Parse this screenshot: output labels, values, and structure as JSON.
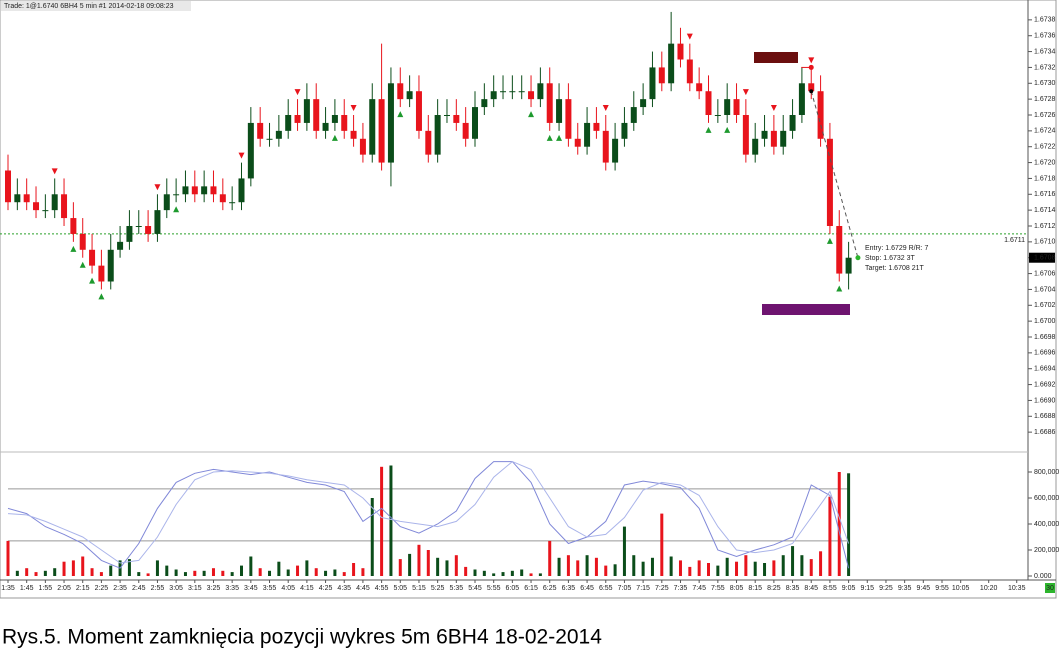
{
  "chart_data": {
    "type": "candlestick",
    "header": "Trade: 1@1.6740  6BH4  5 min  #1 2014-02-18 09:08:23",
    "caption": "Rys.5. Moment zamknięcia pozycji wykres 5m 6BH4 18-02-2014",
    "up_color": "#0b4d1a",
    "down_color": "#e8141c",
    "ylim": [
      1.6684,
      1.674
    ],
    "yticks": [
      1.6686,
      1.6688,
      {
        "value": 1.669,
        "label": "1.6690"
      },
      1.6692,
      1.6694,
      1.6696,
      1.6698,
      {
        "value": 1.67,
        "label": "1.6700"
      },
      1.6702,
      1.6704,
      1.6706,
      1.6708,
      {
        "value": 1.671,
        "label": "1.6710"
      },
      1.6712,
      1.6714,
      1.6716,
      1.6718,
      {
        "value": 1.672,
        "label": "1.6720"
      },
      1.6722,
      1.6724,
      1.6726,
      1.6728,
      {
        "value": 1.673,
        "label": "1.6730"
      },
      1.6732,
      1.6734,
      1.6736,
      1.6738
    ],
    "xlim": [
      -0.5,
      110
    ],
    "xticks": [
      {
        "value": 0,
        "label": "1:35"
      },
      {
        "value": 2,
        "label": "1:45"
      },
      {
        "value": 4,
        "label": "1:55"
      },
      {
        "value": 6,
        "label": "2:05"
      },
      {
        "value": 8,
        "label": "2:15"
      },
      {
        "value": 10,
        "label": "2:25"
      },
      {
        "value": 12,
        "label": "2:35"
      },
      {
        "value": 14,
        "label": "2:45"
      },
      {
        "value": 16,
        "label": "2:55"
      },
      {
        "value": 18,
        "label": "3:05"
      },
      {
        "value": 20,
        "label": "3:15"
      },
      {
        "value": 22,
        "label": "3:25"
      },
      {
        "value": 24,
        "label": "3:35"
      },
      {
        "value": 26,
        "label": "3:45"
      },
      {
        "value": 28,
        "label": "3:55"
      },
      {
        "value": 30,
        "label": "4:05"
      },
      {
        "value": 32,
        "label": "4:15"
      },
      {
        "value": 34,
        "label": "4:25"
      },
      {
        "value": 36,
        "label": "4:35"
      },
      {
        "value": 38,
        "label": "4:45"
      },
      {
        "value": 40,
        "label": "4:55"
      },
      {
        "value": 42,
        "label": "5:05"
      },
      {
        "value": 44,
        "label": "5:15"
      },
      {
        "value": 46,
        "label": "5:25"
      },
      {
        "value": 48,
        "label": "5:35"
      },
      {
        "value": 50,
        "label": "5:45"
      },
      {
        "value": 52,
        "label": "5:55"
      },
      {
        "value": 54,
        "label": "6:05"
      },
      {
        "value": 56,
        "label": "6:15"
      },
      {
        "value": 58,
        "label": "6:25"
      },
      {
        "value": 60,
        "label": "6:35"
      },
      {
        "value": 62,
        "label": "6:45"
      },
      {
        "value": 64,
        "label": "6:55"
      },
      {
        "value": 66,
        "label": "7:05"
      },
      {
        "value": 68,
        "label": "7:15"
      },
      {
        "value": 70,
        "label": "7:25"
      },
      {
        "value": 72,
        "label": "7:35"
      },
      {
        "value": 74,
        "label": "7:45"
      },
      {
        "value": 76,
        "label": "7:55"
      },
      {
        "value": 78,
        "label": "8:05"
      },
      {
        "value": 80,
        "label": "8:15"
      },
      {
        "value": 82,
        "label": "8:25"
      },
      {
        "value": 84,
        "label": "8:35"
      },
      {
        "value": 86,
        "label": "8:45"
      },
      {
        "value": 88,
        "label": "8:55"
      },
      {
        "value": 90,
        "label": "9:05"
      },
      {
        "value": 92,
        "label": "9:15"
      },
      {
        "value": 94,
        "label": "9:25"
      },
      {
        "value": 96,
        "label": "9:35"
      },
      {
        "value": 98,
        "label": "9:45"
      },
      {
        "value": 100,
        "label": "9:55"
      },
      {
        "value": 102,
        "label": "10:05"
      },
      {
        "value": 105,
        "label": "10:20"
      },
      {
        "value": 108,
        "label": "10:35"
      }
    ],
    "ohlc": [
      [
        1.6719,
        1.6721,
        1.6714,
        1.6715
      ],
      [
        1.6715,
        1.6718,
        1.6714,
        1.6716
      ],
      [
        1.6716,
        1.6718,
        1.6714,
        1.6715
      ],
      [
        1.6715,
        1.6717,
        1.6713,
        1.6714
      ],
      [
        1.6714,
        1.6716,
        1.6713,
        1.6714
      ],
      [
        1.6714,
        1.6718,
        1.6713,
        1.6716
      ],
      [
        1.6716,
        1.6718,
        1.6712,
        1.6713
      ],
      [
        1.6713,
        1.6715,
        1.671,
        1.6711
      ],
      [
        1.6711,
        1.6713,
        1.6708,
        1.6709
      ],
      [
        1.6709,
        1.6711,
        1.6706,
        1.6707
      ],
      [
        1.6707,
        1.6709,
        1.6704,
        1.6705
      ],
      [
        1.6705,
        1.6711,
        1.6704,
        1.6709
      ],
      [
        1.6709,
        1.6712,
        1.6708,
        1.671
      ],
      [
        1.671,
        1.6714,
        1.6709,
        1.6712
      ],
      [
        1.6712,
        1.6714,
        1.6711,
        1.6712
      ],
      [
        1.6712,
        1.6714,
        1.671,
        1.6711
      ],
      [
        1.6711,
        1.6716,
        1.671,
        1.6714
      ],
      [
        1.6714,
        1.6718,
        1.6713,
        1.6716
      ],
      [
        1.6716,
        1.6718,
        1.6715,
        1.6716
      ],
      [
        1.6716,
        1.6719,
        1.6715,
        1.6717
      ],
      [
        1.6717,
        1.6719,
        1.6715,
        1.6716
      ],
      [
        1.6716,
        1.6719,
        1.6715,
        1.6717
      ],
      [
        1.6717,
        1.6719,
        1.6715,
        1.6716
      ],
      [
        1.6716,
        1.6718,
        1.6714,
        1.6715
      ],
      [
        1.6715,
        1.6717,
        1.6714,
        1.6715
      ],
      [
        1.6715,
        1.672,
        1.6714,
        1.6718
      ],
      [
        1.6718,
        1.6727,
        1.6717,
        1.6725
      ],
      [
        1.6725,
        1.6727,
        1.6722,
        1.6723
      ],
      [
        1.6723,
        1.6725,
        1.6722,
        1.6723
      ],
      [
        1.6723,
        1.6726,
        1.6722,
        1.6724
      ],
      [
        1.6724,
        1.6728,
        1.6723,
        1.6726
      ],
      [
        1.6726,
        1.6728,
        1.6724,
        1.6725
      ],
      [
        1.6725,
        1.673,
        1.6724,
        1.6728
      ],
      [
        1.6728,
        1.673,
        1.6723,
        1.6724
      ],
      [
        1.6724,
        1.6727,
        1.6723,
        1.6725
      ],
      [
        1.6725,
        1.6728,
        1.6724,
        1.6726
      ],
      [
        1.6726,
        1.6728,
        1.6723,
        1.6724
      ],
      [
        1.6724,
        1.6726,
        1.6722,
        1.6723
      ],
      [
        1.6723,
        1.6725,
        1.672,
        1.6721
      ],
      [
        1.6721,
        1.673,
        1.672,
        1.6728
      ],
      [
        1.6728,
        1.6735,
        1.6719,
        1.672
      ],
      [
        1.672,
        1.6732,
        1.6717,
        1.673
      ],
      [
        1.673,
        1.6732,
        1.6727,
        1.6728
      ],
      [
        1.6728,
        1.6731,
        1.6727,
        1.6729
      ],
      [
        1.6729,
        1.6731,
        1.6723,
        1.6724
      ],
      [
        1.6724,
        1.6726,
        1.672,
        1.6721
      ],
      [
        1.6721,
        1.6728,
        1.672,
        1.6726
      ],
      [
        1.6726,
        1.6728,
        1.6725,
        1.6726
      ],
      [
        1.6726,
        1.6728,
        1.6724,
        1.6725
      ],
      [
        1.6725,
        1.6727,
        1.6722,
        1.6723
      ],
      [
        1.6723,
        1.6729,
        1.6722,
        1.6727
      ],
      [
        1.6727,
        1.673,
        1.6726,
        1.6728
      ],
      [
        1.6728,
        1.6731,
        1.6727,
        1.6729
      ],
      [
        1.6729,
        1.6731,
        1.6728,
        1.6729
      ],
      [
        1.6729,
        1.6731,
        1.6728,
        1.6729
      ],
      [
        1.6729,
        1.6731,
        1.6728,
        1.6729
      ],
      [
        1.6729,
        1.6731,
        1.6727,
        1.6728
      ],
      [
        1.6728,
        1.6732,
        1.6727,
        1.673
      ],
      [
        1.673,
        1.6732,
        1.6724,
        1.6725
      ],
      [
        1.6725,
        1.673,
        1.6724,
        1.6728
      ],
      [
        1.6728,
        1.673,
        1.6722,
        1.6723
      ],
      [
        1.6723,
        1.6725,
        1.6721,
        1.6722
      ],
      [
        1.6722,
        1.6727,
        1.6721,
        1.6725
      ],
      [
        1.6725,
        1.6727,
        1.6723,
        1.6724
      ],
      [
        1.6724,
        1.6726,
        1.6719,
        1.672
      ],
      [
        1.672,
        1.6725,
        1.6719,
        1.6723
      ],
      [
        1.6723,
        1.6727,
        1.6722,
        1.6725
      ],
      [
        1.6725,
        1.6729,
        1.6724,
        1.6727
      ],
      [
        1.6727,
        1.673,
        1.6726,
        1.6728
      ],
      [
        1.6728,
        1.6734,
        1.6727,
        1.6732
      ],
      [
        1.6732,
        1.6734,
        1.6729,
        1.673
      ],
      [
        1.673,
        1.6739,
        1.6729,
        1.6735
      ],
      [
        1.6735,
        1.6737,
        1.6732,
        1.6733
      ],
      [
        1.6733,
        1.6735,
        1.6729,
        1.673
      ],
      [
        1.673,
        1.6732,
        1.6728,
        1.6729
      ],
      [
        1.6729,
        1.6731,
        1.6725,
        1.6726
      ],
      [
        1.6726,
        1.6728,
        1.6725,
        1.6726
      ],
      [
        1.6726,
        1.673,
        1.6725,
        1.6728
      ],
      [
        1.6728,
        1.673,
        1.6725,
        1.6726
      ],
      [
        1.6726,
        1.6728,
        1.672,
        1.6721
      ],
      [
        1.6721,
        1.6725,
        1.672,
        1.6723
      ],
      [
        1.6723,
        1.6726,
        1.6722,
        1.6724
      ],
      [
        1.6724,
        1.6726,
        1.6721,
        1.6722
      ],
      [
        1.6722,
        1.6726,
        1.6721,
        1.6724
      ],
      [
        1.6724,
        1.6728,
        1.6723,
        1.6726
      ],
      [
        1.6726,
        1.6732,
        1.6725,
        1.673
      ],
      [
        1.673,
        1.6732,
        1.6728,
        1.6729
      ],
      [
        1.6729,
        1.6731,
        1.6722,
        1.6723
      ],
      [
        1.6723,
        1.6725,
        1.6711,
        1.6712
      ],
      [
        1.6712,
        1.6714,
        1.6705,
        1.6706
      ],
      [
        1.6706,
        1.671,
        1.6704,
        1.6708
      ]
    ],
    "sell_signals": [
      5,
      16,
      25,
      31,
      37,
      64,
      73,
      79,
      82,
      86
    ],
    "buy_signals": [
      7,
      8,
      9,
      10,
      18,
      35,
      42,
      56,
      58,
      59,
      75,
      77,
      88,
      89
    ],
    "hline": 1.6711,
    "hline_color": "#2aa02a",
    "trade": {
      "entry": 1.6729,
      "stop": 1.6732,
      "target": 1.6708
    },
    "annotations": [
      "Entry: 1.6729  R/R: 7",
      "Stop: 1.6732  3T",
      "Target: 1.6708  21T"
    ],
    "corner_label": "30",
    "volume_ylim": [
      0,
      900000
    ],
    "volume_yticks": [
      {
        "value": 0,
        "label": "0.000"
      },
      {
        "value": 200000,
        "label": "200,000"
      },
      {
        "value": 400000,
        "label": "400,000"
      },
      {
        "value": 600000,
        "label": "600,000"
      },
      {
        "value": 800000,
        "label": "800,000"
      }
    ],
    "volume": [
      270000,
      40000,
      60000,
      30000,
      40000,
      60000,
      110000,
      120000,
      150000,
      60000,
      30000,
      80000,
      120000,
      130000,
      30000,
      20000,
      120000,
      80000,
      50000,
      30000,
      40000,
      40000,
      60000,
      40000,
      30000,
      80000,
      150000,
      60000,
      40000,
      110000,
      50000,
      80000,
      120000,
      60000,
      40000,
      50000,
      30000,
      100000,
      60000,
      600000,
      840000,
      850000,
      130000,
      170000,
      240000,
      200000,
      140000,
      120000,
      160000,
      70000,
      50000,
      40000,
      20000,
      30000,
      40000,
      50000,
      20000,
      20000,
      270000,
      140000,
      160000,
      120000,
      160000,
      140000,
      80000,
      90000,
      380000,
      160000,
      110000,
      140000,
      480000,
      150000,
      120000,
      70000,
      120000,
      100000,
      80000,
      140000,
      110000,
      160000,
      110000,
      100000,
      120000,
      160000,
      230000,
      160000,
      130000,
      190000,
      610000,
      800000,
      790000
    ],
    "levels": [
      670000,
      270000
    ],
    "stoch_x": [
      0,
      2,
      4,
      6,
      8,
      10,
      12,
      14,
      16,
      18,
      20,
      22,
      24,
      26,
      28,
      30,
      32,
      34,
      36,
      38,
      40,
      42,
      44,
      46,
      48,
      50,
      52,
      54,
      56,
      58,
      60,
      62,
      64,
      66,
      68,
      70,
      72,
      74,
      76,
      78,
      80,
      82,
      84,
      86,
      88,
      90
    ],
    "stochastic": [
      {
        "color": "#8088d8",
        "values": [
          520000,
          480000,
          380000,
          320000,
          250000,
          120000,
          60000,
          250000,
          520000,
          720000,
          790000,
          820000,
          800000,
          780000,
          800000,
          760000,
          720000,
          700000,
          650000,
          420000,
          520000,
          380000,
          330000,
          400000,
          500000,
          750000,
          880000,
          880000,
          720000,
          400000,
          250000,
          300000,
          420000,
          700000,
          730000,
          710000,
          680000,
          520000,
          200000,
          150000,
          200000,
          240000,
          300000,
          700000,
          620000,
          60000
        ]
      },
      {
        "color": "#aab4ea",
        "values": [
          480000,
          470000,
          420000,
          360000,
          300000,
          200000,
          100000,
          120000,
          300000,
          550000,
          740000,
          800000,
          810000,
          800000,
          790000,
          770000,
          740000,
          720000,
          700000,
          600000,
          450000,
          420000,
          400000,
          380000,
          420000,
          550000,
          760000,
          880000,
          820000,
          600000,
          380000,
          300000,
          320000,
          450000,
          660000,
          720000,
          700000,
          620000,
          380000,
          200000,
          180000,
          200000,
          250000,
          450000,
          650000,
          250000
        ]
      }
    ]
  }
}
